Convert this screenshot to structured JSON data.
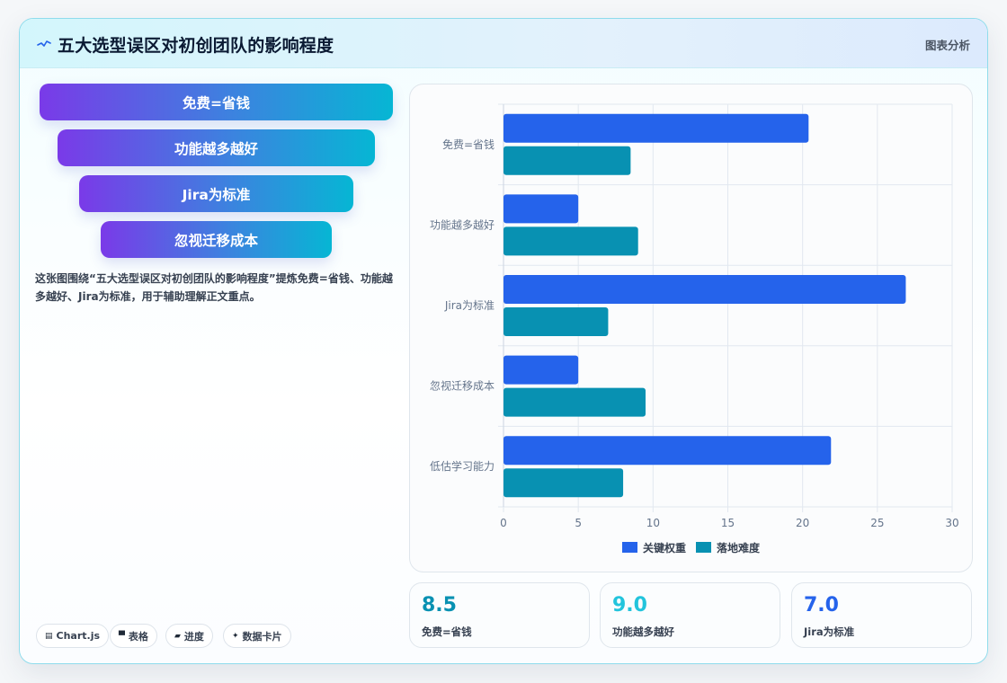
{
  "header": {
    "title": "五大选型误区对初创团队的影响程度",
    "tag": "图表分析"
  },
  "funnel": {
    "items": [
      "免费=省钱",
      "功能越多越好",
      "Jira为标准",
      "忽视迁移成本"
    ]
  },
  "description": "这张图围绕“五大选型误区对初创团队的影响程度”提炼免费=省钱、功能越多越好、Jira为标准，用于辅助理解正文重点。",
  "chips": [
    {
      "icon": "chart-icon",
      "glyph": "▤",
      "label": "Chart.js"
    },
    {
      "icon": "table-icon",
      "glyph": "▀",
      "label": "表格"
    },
    {
      "icon": "progress-icon",
      "glyph": "▰",
      "label": "进度"
    },
    {
      "icon": "sparkle-icon",
      "glyph": "✦",
      "label": "数据卡片"
    }
  ],
  "stats": [
    {
      "value": "8.5",
      "label": "免费=省钱",
      "color": "#0891b2"
    },
    {
      "value": "9.0",
      "label": "功能越多越好",
      "color": "#22c4dc"
    },
    {
      "value": "7.0",
      "label": "Jira为标准",
      "color": "#2563eb"
    }
  ],
  "colors": {
    "series1": "#2563eb",
    "series2": "#0891b2",
    "grid": "#e2e8f0",
    "axis_text": "#64748b"
  },
  "chart_data": {
    "type": "bar",
    "orientation": "horizontal",
    "categories": [
      "免费=省钱",
      "功能越多越好",
      "Jira为标准",
      "忽视迁移成本",
      "低估学习能力"
    ],
    "series": [
      {
        "name": "关键权重",
        "values": [
          20.4,
          5.0,
          26.9,
          5.0,
          21.9
        ],
        "color": "#2563eb"
      },
      {
        "name": "落地难度",
        "values": [
          8.5,
          9.0,
          7.0,
          9.5,
          8.0
        ],
        "color": "#0891b2"
      }
    ],
    "xlim": [
      0,
      30
    ],
    "xticks": [
      0,
      5,
      10,
      15,
      20,
      25,
      30
    ],
    "grid": true,
    "legend": "bottom"
  }
}
